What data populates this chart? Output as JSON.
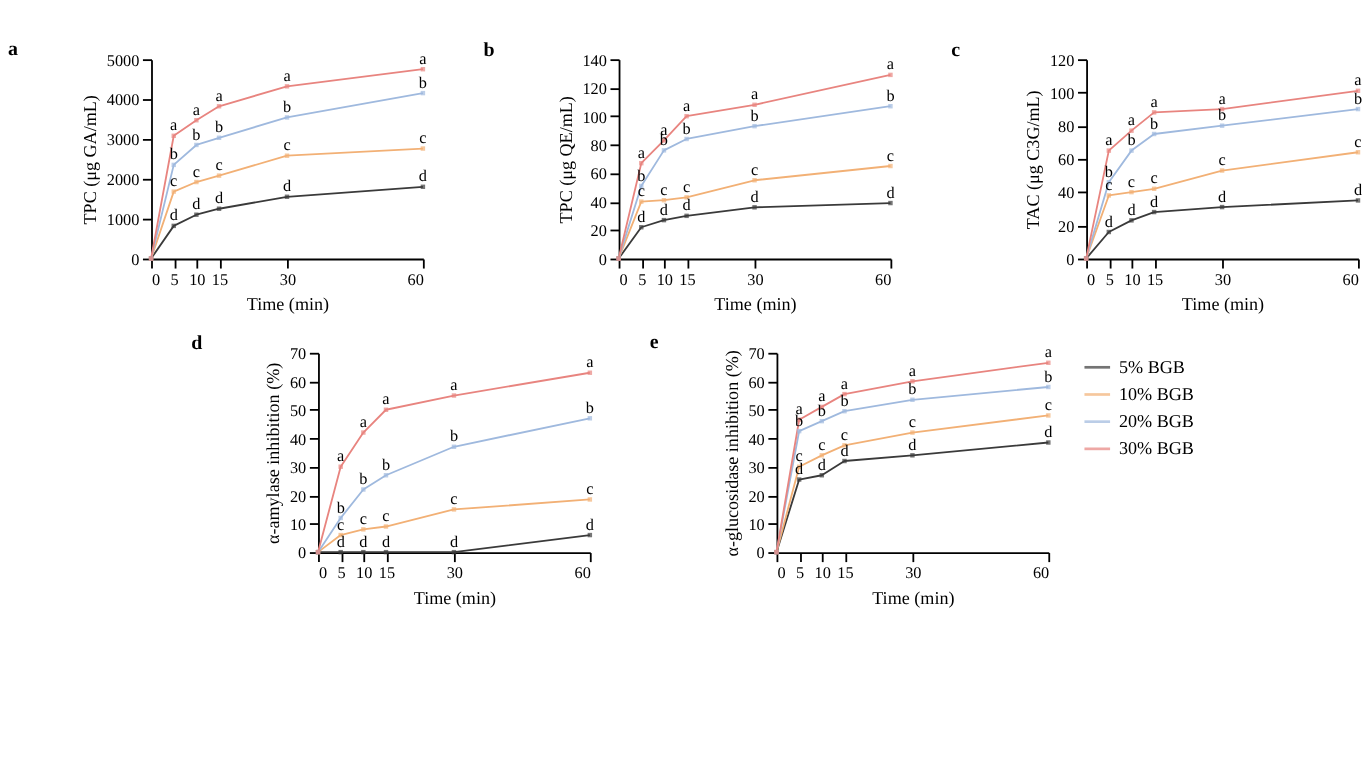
{
  "chart_data": [
    {
      "type": "line",
      "title": "a",
      "xlabel": "Time (min)",
      "ylabel": "TPC (μg GA/mL)",
      "x": [
        0,
        5,
        10,
        15,
        30,
        60
      ],
      "xlim": [
        0,
        60
      ],
      "xticks": [
        0,
        5,
        10,
        15,
        30,
        60
      ],
      "ylim": [
        0,
        5000
      ],
      "yticks": [
        0,
        1000,
        2000,
        3000,
        4000,
        5000
      ],
      "grid": false,
      "marker": "square",
      "line_style": "solid",
      "series": [
        {
          "color": "#3a3a3a",
          "values": [
            0,
            820,
            1100,
            1250,
            1550,
            1800
          ],
          "value_labels": [
            null,
            "d",
            "d",
            "d",
            "d",
            "d"
          ]
        },
        {
          "color": "#f2b075",
          "values": [
            0,
            1680,
            1920,
            2080,
            2580,
            2760
          ],
          "value_labels": [
            null,
            "c",
            "c",
            "c",
            "c",
            "c"
          ]
        },
        {
          "color": "#9fb9de",
          "values": [
            0,
            2350,
            2850,
            3030,
            3540,
            4150
          ],
          "value_labels": [
            null,
            "b",
            "b",
            "b",
            "b",
            "b"
          ]
        },
        {
          "color": "#e8847f",
          "values": [
            0,
            3080,
            3470,
            3820,
            4320,
            4750
          ],
          "value_labels": [
            null,
            "a",
            "a",
            "a",
            "a",
            "a"
          ]
        }
      ]
    },
    {
      "type": "line",
      "title": "b",
      "xlabel": "Time (min)",
      "ylabel": "TPC (μg QE/mL)",
      "x": [
        0,
        5,
        10,
        15,
        30,
        60
      ],
      "xlim": [
        0,
        60
      ],
      "xticks": [
        0,
        5,
        10,
        15,
        30,
        60
      ],
      "ylim": [
        0,
        140
      ],
      "yticks": [
        0,
        20,
        40,
        60,
        80,
        100,
        120,
        140
      ],
      "grid": false,
      "marker": "square",
      "line_style": "solid",
      "series": [
        {
          "color": "#3a3a3a",
          "values": [
            0,
            22,
            27,
            30,
            36,
            39
          ],
          "value_labels": [
            null,
            "d",
            "d",
            "d",
            "d",
            "d"
          ]
        },
        {
          "color": "#f2b075",
          "values": [
            0,
            40,
            41,
            43,
            55,
            65
          ],
          "value_labels": [
            null,
            "c",
            "c",
            "c",
            "c",
            "c"
          ]
        },
        {
          "color": "#9fb9de",
          "values": [
            0,
            51,
            76,
            84,
            93,
            107
          ],
          "value_labels": [
            null,
            "b",
            "b",
            "b",
            "b",
            "b"
          ]
        },
        {
          "color": "#e8847f",
          "values": [
            0,
            67,
            83,
            100,
            108,
            129
          ],
          "value_labels": [
            null,
            "a",
            "a",
            "a",
            "a",
            "a"
          ]
        }
      ]
    },
    {
      "type": "line",
      "title": "c",
      "xlabel": "Time (min)",
      "ylabel": "TAC (μg C3G/mL)",
      "x": [
        0,
        5,
        10,
        15,
        30,
        60
      ],
      "xlim": [
        0,
        60
      ],
      "xticks": [
        0,
        5,
        10,
        15,
        30,
        60
      ],
      "ylim": [
        0,
        120
      ],
      "yticks": [
        0,
        20,
        40,
        60,
        80,
        100,
        120
      ],
      "grid": false,
      "marker": "square",
      "line_style": "solid",
      "series": [
        {
          "color": "#3a3a3a",
          "values": [
            0,
            16,
            23,
            28,
            31,
            35
          ],
          "value_labels": [
            null,
            "d",
            "d",
            "d",
            "d",
            "d"
          ]
        },
        {
          "color": "#f2b075",
          "values": [
            0,
            38,
            40,
            42,
            53,
            64
          ],
          "value_labels": [
            null,
            "c",
            "c",
            "c",
            "c",
            "c"
          ]
        },
        {
          "color": "#9fb9de",
          "values": [
            0,
            46,
            65,
            75,
            80,
            90
          ],
          "value_labels": [
            null,
            "b",
            "b",
            "b",
            "b",
            "b"
          ]
        },
        {
          "color": "#e8847f",
          "values": [
            0,
            65,
            77,
            88,
            90,
            101
          ],
          "value_labels": [
            null,
            "a",
            "a",
            "a",
            "a",
            "a"
          ]
        }
      ]
    },
    {
      "type": "line",
      "title": "d",
      "xlabel": "Time (min)",
      "ylabel": "α-amylase inhibition (%)",
      "x": [
        0,
        5,
        10,
        15,
        30,
        60
      ],
      "xlim": [
        0,
        60
      ],
      "xticks": [
        0,
        5,
        10,
        15,
        30,
        60
      ],
      "ylim": [
        0,
        70
      ],
      "yticks": [
        0,
        10,
        20,
        30,
        40,
        50,
        60,
        70
      ],
      "grid": false,
      "marker": "square",
      "line_style": "solid",
      "series": [
        {
          "color": "#3a3a3a",
          "values": [
            0,
            0,
            0,
            0,
            0,
            6
          ],
          "value_labels": [
            null,
            "d",
            "d",
            "d",
            "d",
            "d"
          ]
        },
        {
          "color": "#f2b075",
          "values": [
            0,
            6,
            8,
            9,
            15,
            18.5
          ],
          "value_labels": [
            null,
            "c",
            "c",
            "c",
            "c",
            "c"
          ]
        },
        {
          "color": "#9fb9de",
          "values": [
            0,
            12,
            22,
            27,
            37,
            47
          ],
          "value_labels": [
            null,
            "b",
            "b",
            "b",
            "b",
            "b"
          ]
        },
        {
          "color": "#e8847f",
          "values": [
            0,
            30,
            42,
            50,
            55,
            63
          ],
          "value_labels": [
            null,
            "a",
            "a",
            "a",
            "a",
            "a"
          ]
        }
      ]
    },
    {
      "type": "line",
      "title": "e",
      "xlabel": "Time (min)",
      "ylabel": "α-glucosidase inhibition (%)",
      "x": [
        0,
        5,
        10,
        15,
        30,
        60
      ],
      "xlim": [
        0,
        60
      ],
      "xticks": [
        0,
        5,
        10,
        15,
        30,
        60
      ],
      "ylim": [
        0,
        70
      ],
      "yticks": [
        0,
        10,
        20,
        30,
        40,
        50,
        60,
        70
      ],
      "grid": false,
      "legend": "right",
      "marker": "square",
      "line_style": "solid",
      "series": [
        {
          "name": "5% BGB",
          "color": "#3a3a3a",
          "values": [
            0,
            25.5,
            27,
            32,
            34,
            38.5
          ],
          "value_labels": [
            null,
            "d",
            "d",
            "d",
            "d",
            "d"
          ]
        },
        {
          "name": "10% BGB",
          "color": "#f2b075",
          "values": [
            0,
            30,
            34,
            37.5,
            42,
            48
          ],
          "value_labels": [
            null,
            "c",
            "c",
            "c",
            "c",
            "c"
          ]
        },
        {
          "name": "20% BGB",
          "color": "#9fb9de",
          "values": [
            0,
            42.5,
            46,
            49.5,
            53.5,
            58
          ],
          "value_labels": [
            null,
            "b",
            "b",
            "b",
            "b",
            "b"
          ]
        },
        {
          "name": "30% BGB",
          "color": "#e8847f",
          "values": [
            0,
            46.5,
            51,
            55.5,
            60,
            66.5
          ],
          "value_labels": [
            null,
            "a",
            "a",
            "a",
            "a",
            "a"
          ]
        }
      ]
    }
  ]
}
